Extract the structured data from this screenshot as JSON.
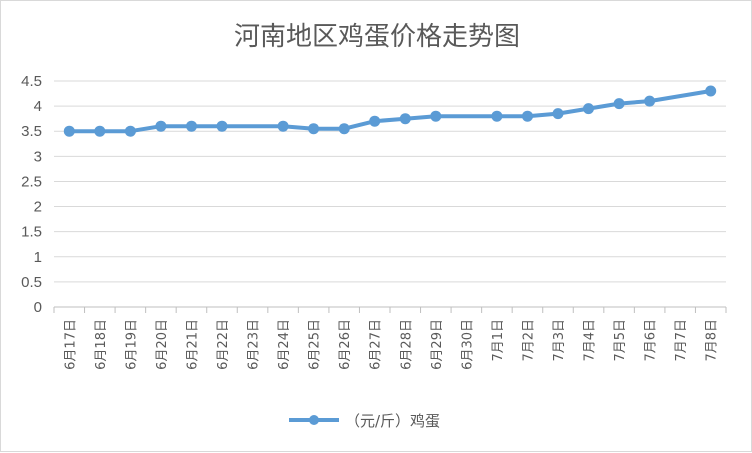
{
  "chart_data": {
    "type": "line",
    "title": "河南地区鸡蛋价格走势图",
    "xlabel": "",
    "ylabel": "",
    "ylim": [
      0,
      4.5
    ],
    "yticks": [
      "0",
      "0.5",
      "1",
      "1.5",
      "2",
      "2.5",
      "3",
      "3.5",
      "4",
      "4.5"
    ],
    "grid": true,
    "legend_position": "bottom",
    "categories": [
      "6月17日",
      "6月18日",
      "6月19日",
      "6月20日",
      "6月21日",
      "6月22日",
      "6月23日",
      "6月24日",
      "6月25日",
      "6月26日",
      "6月27日",
      "6月28日",
      "6月29日",
      "6月30日",
      "7月1日",
      "7月2日",
      "7月3日",
      "7月4日",
      "7月5日",
      "7月6日",
      "7月7日",
      "7月8日"
    ],
    "series": [
      {
        "name": "（元/斤）鸡蛋",
        "color": "#5b9bd5",
        "values": [
          3.5,
          3.5,
          3.5,
          3.6,
          3.6,
          3.6,
          null,
          3.6,
          3.55,
          3.55,
          3.7,
          3.75,
          3.8,
          null,
          3.8,
          3.8,
          3.85,
          3.95,
          4.05,
          4.1,
          null,
          4.3
        ]
      }
    ]
  }
}
